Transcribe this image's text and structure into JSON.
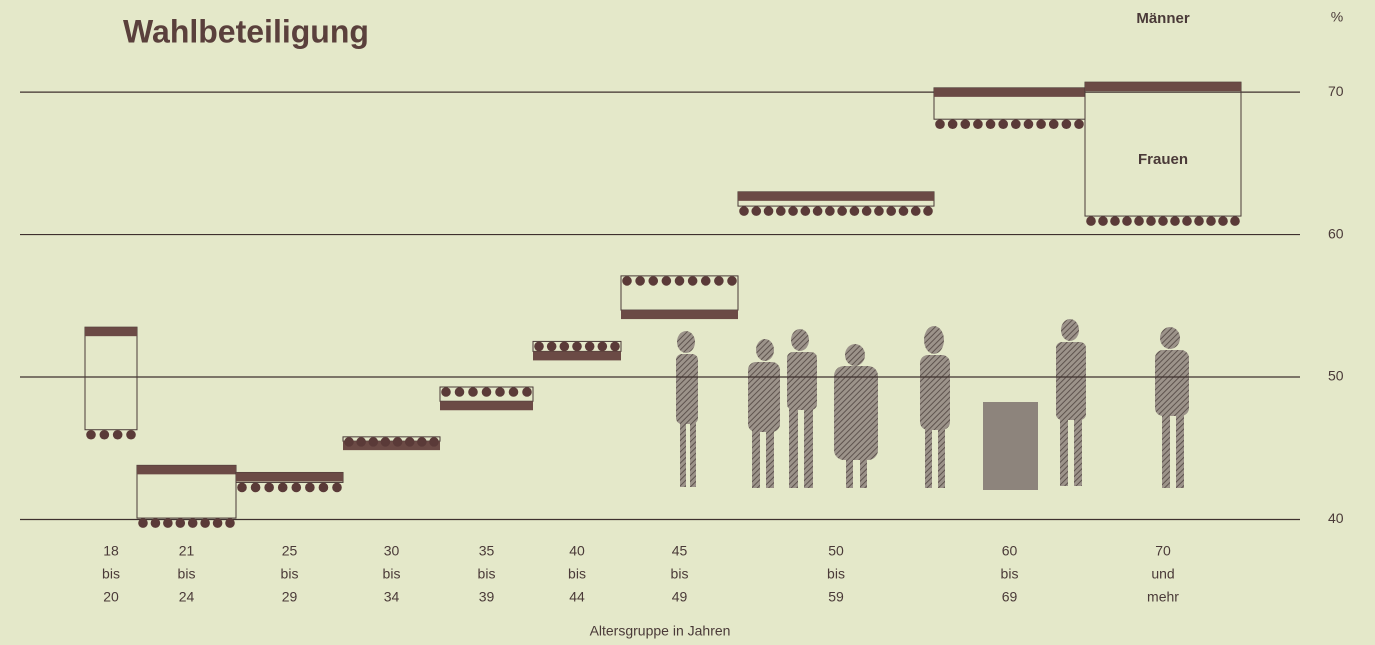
{
  "chart_data": {
    "type": "step",
    "title": "Wahlbeteiligung",
    "y_unit": "%",
    "x_label": "Altersgruppe in Jahren",
    "categories": [
      [
        "18",
        "bis",
        "20"
      ],
      [
        "21",
        "bis",
        "24"
      ],
      [
        "25",
        "bis",
        "29"
      ],
      [
        "30",
        "bis",
        "34"
      ],
      [
        "35",
        "bis",
        "39"
      ],
      [
        "40",
        "bis",
        "44"
      ],
      [
        "45",
        "bis",
        "49"
      ],
      [
        "50",
        "bis",
        "59"
      ],
      [
        "60",
        "bis",
        "69"
      ],
      [
        "70",
        "und",
        "mehr"
      ]
    ],
    "series": [
      {
        "name": "Männer",
        "color": "#6b4a45",
        "style": "bar",
        "values": [
          53.5,
          43.8,
          43.3,
          45.5,
          48.3,
          51.8,
          54.7,
          63.0,
          70.3,
          70.7
        ]
      },
      {
        "name": "Frauen",
        "color": "#5a3a38",
        "style": "dots",
        "values": [
          46.3,
          40.1,
          42.6,
          45.8,
          49.3,
          52.5,
          57.1,
          62.0,
          68.1,
          61.3
        ]
      }
    ],
    "ylim": [
      38.7,
      73.8
    ],
    "yticks": [
      40,
      50,
      60,
      70
    ],
    "grid": true
  }
}
